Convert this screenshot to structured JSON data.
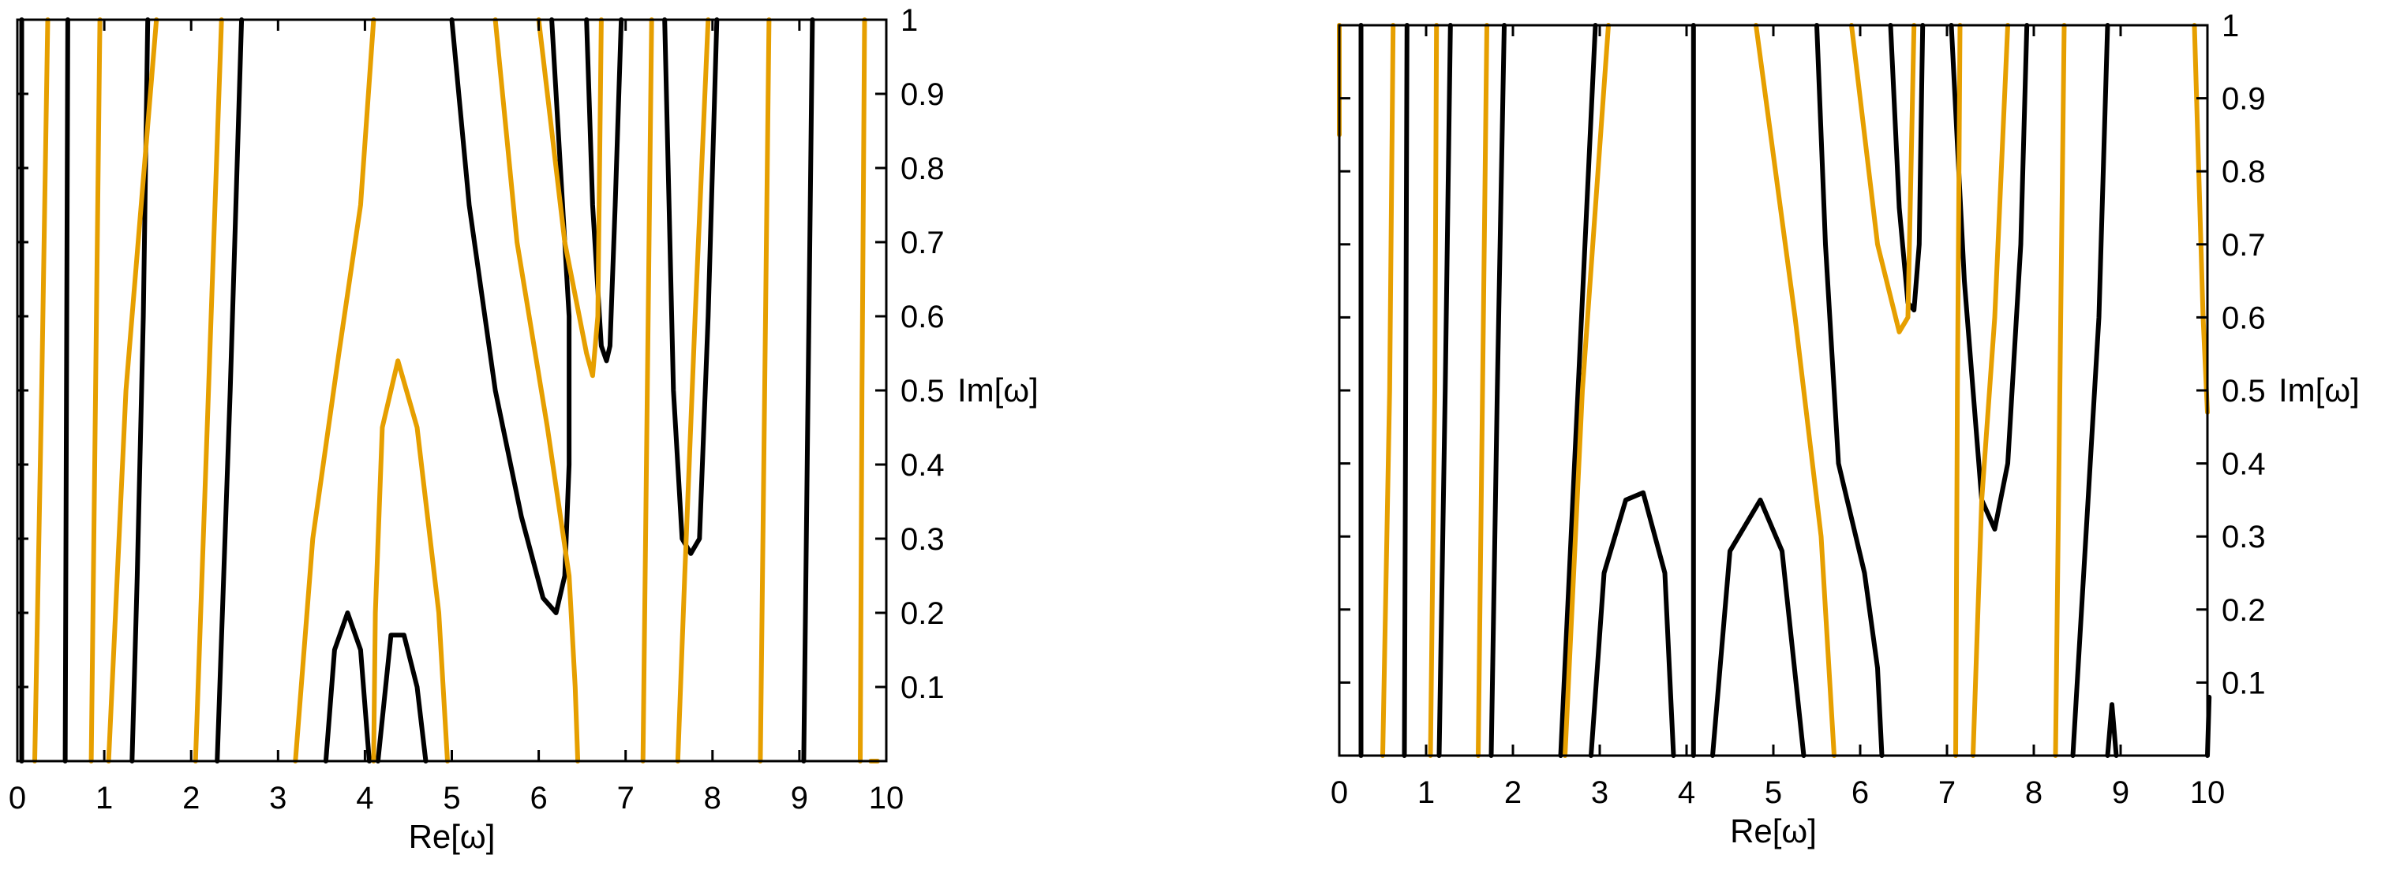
{
  "colors": {
    "zero_set_1": "#000000",
    "zero_set_2": "#e69f00"
  },
  "chart_data": [
    {
      "type": "line",
      "xlabel": "Re[ω]",
      "ylabel": "Im[ω]",
      "xlim": [
        0,
        10
      ],
      "ylim": [
        0,
        1
      ],
      "xticks": [
        "0",
        "1",
        "2",
        "3",
        "4",
        "5",
        "6",
        "7",
        "8",
        "9",
        "10"
      ],
      "yticks": [
        "0.1",
        "0.2",
        "0.3",
        "0.4",
        "0.5",
        "0.6",
        "0.7",
        "0.8",
        "0.9",
        "1"
      ],
      "y_axis_side": "right",
      "grid": false,
      "legend": "none",
      "series": [
        {
          "color": "black",
          "points": [
            [
              0.05,
              0.0
            ],
            [
              0.05,
              1.0
            ]
          ]
        },
        {
          "color": "black",
          "points": [
            [
              0.55,
              0.0
            ],
            [
              0.58,
              1.0
            ]
          ]
        },
        {
          "color": "black",
          "points": [
            [
              1.32,
              0.0
            ],
            [
              1.38,
              0.25
            ],
            [
              1.45,
              0.6
            ],
            [
              1.5,
              1.0
            ]
          ]
        },
        {
          "color": "black",
          "points": [
            [
              2.3,
              0.0
            ],
            [
              2.45,
              0.5
            ],
            [
              2.58,
              1.0
            ]
          ]
        },
        {
          "color": "black",
          "points": [
            [
              3.55,
              0.0
            ],
            [
              3.65,
              0.15
            ],
            [
              3.8,
              0.2
            ],
            [
              3.95,
              0.15
            ],
            [
              4.05,
              0.0
            ]
          ]
        },
        {
          "color": "black",
          "points": [
            [
              4.15,
              0.0
            ],
            [
              4.3,
              0.17
            ],
            [
              4.45,
              0.17
            ],
            [
              4.6,
              0.1
            ],
            [
              4.7,
              0.0
            ]
          ]
        },
        {
          "color": "black",
          "points": [
            [
              5.0,
              1.0
            ],
            [
              5.2,
              0.75
            ],
            [
              5.5,
              0.5
            ],
            [
              5.8,
              0.33
            ],
            [
              6.05,
              0.22
            ],
            [
              6.2,
              0.2
            ],
            [
              6.3,
              0.25
            ],
            [
              6.35,
              0.4
            ],
            [
              6.35,
              0.6
            ],
            [
              6.25,
              0.8
            ],
            [
              6.15,
              1.0
            ]
          ]
        },
        {
          "color": "black",
          "points": [
            [
              6.55,
              1.0
            ],
            [
              6.62,
              0.75
            ],
            [
              6.72,
              0.56
            ],
            [
              6.78,
              0.54
            ],
            [
              6.82,
              0.56
            ],
            [
              6.88,
              0.75
            ],
            [
              6.95,
              1.0
            ]
          ]
        },
        {
          "color": "black",
          "points": [
            [
              7.45,
              1.0
            ],
            [
              7.55,
              0.5
            ],
            [
              7.65,
              0.3
            ],
            [
              7.75,
              0.28
            ],
            [
              7.85,
              0.3
            ],
            [
              7.95,
              0.6
            ],
            [
              8.05,
              1.0
            ]
          ]
        },
        {
          "color": "black",
          "points": [
            [
              9.05,
              0.0
            ],
            [
              9.1,
              0.5
            ],
            [
              9.15,
              1.0
            ]
          ]
        },
        {
          "color": "orange",
          "points": [
            [
              0.2,
              0.0
            ],
            [
              0.28,
              0.5
            ],
            [
              0.35,
              1.0
            ]
          ]
        },
        {
          "color": "orange",
          "points": [
            [
              0.85,
              0.0
            ],
            [
              0.9,
              0.5
            ],
            [
              0.95,
              1.0
            ]
          ]
        },
        {
          "color": "orange",
          "points": [
            [
              1.05,
              0.0
            ],
            [
              1.25,
              0.5
            ],
            [
              1.6,
              1.0
            ]
          ]
        },
        {
          "color": "orange",
          "points": [
            [
              2.05,
              0.0
            ],
            [
              2.2,
              0.5
            ],
            [
              2.35,
              1.0
            ]
          ]
        },
        {
          "color": "orange",
          "points": [
            [
              3.2,
              0.0
            ],
            [
              3.4,
              0.3
            ],
            [
              3.7,
              0.55
            ],
            [
              3.95,
              0.75
            ],
            [
              4.1,
              1.0
            ]
          ]
        },
        {
          "color": "orange",
          "points": [
            [
              4.1,
              0.0
            ],
            [
              4.12,
              0.2
            ],
            [
              4.2,
              0.45
            ],
            [
              4.38,
              0.54
            ],
            [
              4.6,
              0.45
            ],
            [
              4.85,
              0.2
            ],
            [
              4.95,
              0.0
            ]
          ]
        },
        {
          "color": "orange",
          "points": [
            [
              5.5,
              1.0
            ],
            [
              5.75,
              0.7
            ],
            [
              6.1,
              0.45
            ],
            [
              6.35,
              0.25
            ],
            [
              6.42,
              0.1
            ],
            [
              6.45,
              0.0
            ]
          ]
        },
        {
          "color": "orange",
          "points": [
            [
              6.0,
              1.0
            ],
            [
              6.3,
              0.7
            ],
            [
              6.55,
              0.55
            ],
            [
              6.62,
              0.52
            ],
            [
              6.68,
              0.6
            ],
            [
              6.72,
              1.0
            ]
          ]
        },
        {
          "color": "orange",
          "points": [
            [
              7.2,
              0.0
            ],
            [
              7.25,
              0.5
            ],
            [
              7.3,
              1.0
            ]
          ]
        },
        {
          "color": "orange",
          "points": [
            [
              7.6,
              0.0
            ],
            [
              7.68,
              0.25
            ],
            [
              7.8,
              0.6
            ],
            [
              7.95,
              1.0
            ]
          ]
        },
        {
          "color": "orange",
          "points": [
            [
              8.55,
              0.0
            ],
            [
              8.6,
              0.5
            ],
            [
              8.65,
              1.0
            ]
          ]
        },
        {
          "color": "orange",
          "points": [
            [
              9.7,
              0.0
            ],
            [
              9.72,
              0.5
            ],
            [
              9.75,
              1.0
            ]
          ]
        },
        {
          "color": "orange",
          "points": [
            [
              9.82,
              0.0
            ],
            [
              9.9,
              0.0
            ]
          ]
        }
      ]
    },
    {
      "type": "line",
      "xlabel": "Re[ω]",
      "ylabel": "Im[ω]",
      "xlim": [
        0,
        10
      ],
      "ylim": [
        0,
        1
      ],
      "xticks": [
        "0",
        "1",
        "2",
        "3",
        "4",
        "5",
        "6",
        "7",
        "8",
        "9",
        "10"
      ],
      "yticks": [
        "0.1",
        "0.2",
        "0.3",
        "0.4",
        "0.5",
        "0.6",
        "0.7",
        "0.8",
        "0.9",
        "1"
      ],
      "y_axis_side": "right",
      "grid": false,
      "legend": "none",
      "series": [
        {
          "color": "black",
          "points": [
            [
              0.25,
              0.0
            ],
            [
              0.25,
              1.0
            ]
          ]
        },
        {
          "color": "black",
          "points": [
            [
              0.75,
              0.0
            ],
            [
              0.78,
              1.0
            ]
          ]
        },
        {
          "color": "black",
          "points": [
            [
              1.15,
              0.0
            ],
            [
              1.22,
              0.5
            ],
            [
              1.28,
              1.0
            ]
          ]
        },
        {
          "color": "black",
          "points": [
            [
              1.75,
              0.0
            ],
            [
              1.82,
              0.5
            ],
            [
              1.9,
              1.0
            ]
          ]
        },
        {
          "color": "black",
          "points": [
            [
              2.55,
              0.0
            ],
            [
              2.75,
              0.5
            ],
            [
              2.95,
              1.0
            ]
          ]
        },
        {
          "color": "black",
          "points": [
            [
              2.9,
              0.0
            ],
            [
              3.05,
              0.25
            ],
            [
              3.3,
              0.35
            ],
            [
              3.5,
              0.36
            ],
            [
              3.75,
              0.25
            ],
            [
              3.85,
              0.0
            ]
          ]
        },
        {
          "color": "black",
          "points": [
            [
              4.08,
              0.0
            ],
            [
              4.08,
              1.0
            ]
          ]
        },
        {
          "color": "black",
          "points": [
            [
              4.3,
              0.0
            ],
            [
              4.5,
              0.28
            ],
            [
              4.85,
              0.35
            ],
            [
              5.1,
              0.28
            ],
            [
              5.35,
              0.0
            ]
          ]
        },
        {
          "color": "black",
          "points": [
            [
              5.5,
              1.0
            ],
            [
              5.6,
              0.7
            ],
            [
              5.75,
              0.4
            ],
            [
              6.05,
              0.25
            ],
            [
              6.2,
              0.12
            ],
            [
              6.25,
              0.0
            ]
          ]
        },
        {
          "color": "black",
          "points": [
            [
              6.35,
              1.0
            ],
            [
              6.45,
              0.75
            ],
            [
              6.55,
              0.62
            ],
            [
              6.62,
              0.61
            ],
            [
              6.68,
              0.7
            ],
            [
              6.72,
              1.0
            ]
          ]
        },
        {
          "color": "black",
          "points": [
            [
              7.05,
              1.0
            ],
            [
              7.2,
              0.65
            ],
            [
              7.4,
              0.35
            ],
            [
              7.55,
              0.31
            ],
            [
              7.7,
              0.4
            ],
            [
              7.85,
              0.7
            ],
            [
              7.92,
              1.0
            ]
          ]
        },
        {
          "color": "black",
          "points": [
            [
              8.45,
              0.0
            ],
            [
              8.6,
              0.3
            ],
            [
              8.75,
              0.6
            ],
            [
              8.85,
              1.0
            ]
          ]
        },
        {
          "color": "black",
          "points": [
            [
              8.85,
              0.0
            ],
            [
              8.9,
              0.07
            ],
            [
              8.95,
              0.0
            ]
          ]
        },
        {
          "color": "black",
          "points": [
            [
              10.0,
              0.0
            ],
            [
              10.02,
              0.08
            ]
          ]
        },
        {
          "color": "orange",
          "points": [
            [
              0.0,
              0.85
            ],
            [
              0.0,
              1.0
            ]
          ]
        },
        {
          "color": "orange",
          "points": [
            [
              0.5,
              0.0
            ],
            [
              0.58,
              0.5
            ],
            [
              0.62,
              1.0
            ]
          ]
        },
        {
          "color": "orange",
          "points": [
            [
              1.05,
              0.0
            ],
            [
              1.1,
              0.5
            ],
            [
              1.12,
              1.0
            ]
          ]
        },
        {
          "color": "orange",
          "points": [
            [
              1.6,
              0.0
            ],
            [
              1.65,
              0.5
            ],
            [
              1.7,
              1.0
            ]
          ]
        },
        {
          "color": "orange",
          "points": [
            [
              2.6,
              0.0
            ],
            [
              2.8,
              0.5
            ],
            [
              3.1,
              1.0
            ]
          ]
        },
        {
          "color": "orange",
          "points": [
            [
              4.8,
              1.0
            ],
            [
              5.25,
              0.6
            ],
            [
              5.55,
              0.3
            ],
            [
              5.7,
              0.0
            ]
          ]
        },
        {
          "color": "orange",
          "points": [
            [
              5.9,
              1.0
            ],
            [
              6.2,
              0.7
            ],
            [
              6.45,
              0.58
            ],
            [
              6.55,
              0.6
            ],
            [
              6.62,
              1.0
            ]
          ]
        },
        {
          "color": "orange",
          "points": [
            [
              7.1,
              0.0
            ],
            [
              7.12,
              0.5
            ],
            [
              7.15,
              1.0
            ]
          ]
        },
        {
          "color": "orange",
          "points": [
            [
              7.3,
              0.0
            ],
            [
              7.4,
              0.35
            ],
            [
              7.55,
              0.6
            ],
            [
              7.7,
              1.0
            ]
          ]
        },
        {
          "color": "orange",
          "points": [
            [
              8.25,
              0.0
            ],
            [
              8.3,
              0.5
            ],
            [
              8.35,
              1.0
            ]
          ]
        },
        {
          "color": "orange",
          "points": [
            [
              9.85,
              1.0
            ],
            [
              9.95,
              0.6
            ],
            [
              10.0,
              0.47
            ]
          ]
        }
      ]
    }
  ]
}
